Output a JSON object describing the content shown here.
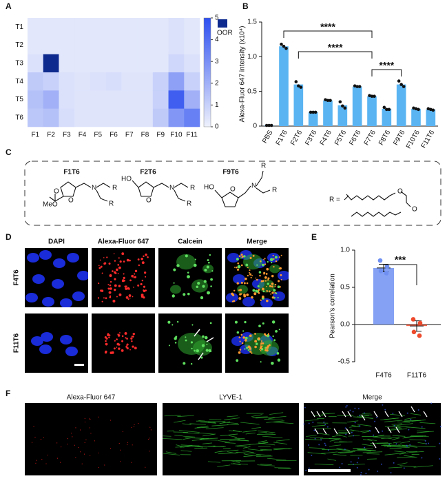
{
  "panel_labels": [
    "A",
    "B",
    "C",
    "D",
    "E",
    "F"
  ],
  "chart_data": [
    {
      "type": "heatmap",
      "rows": [
        "T1",
        "T2",
        "T3",
        "T4",
        "T5",
        "T6"
      ],
      "columns": [
        "F1",
        "F2",
        "F3",
        "F4",
        "F5",
        "F6",
        "F7",
        "F8",
        "F9",
        "F10",
        "F11"
      ],
      "values": [
        [
          0.3,
          0.3,
          0.3,
          0.3,
          0.3,
          0.3,
          0.3,
          0.3,
          0.3,
          0.5,
          0.3
        ],
        [
          0.3,
          0.3,
          0.3,
          0.3,
          0.3,
          0.3,
          0.3,
          0.3,
          0.3,
          0.5,
          0.3
        ],
        [
          0.5,
          null,
          0.3,
          0.3,
          0.3,
          0.3,
          0.3,
          0.3,
          0.3,
          0.8,
          0.5
        ],
        [
          1.2,
          1.0,
          0.5,
          0.4,
          0.5,
          0.6,
          0.4,
          0.4,
          1.0,
          2.5,
          1.0
        ],
        [
          1.5,
          2.0,
          0.5,
          0.4,
          0.4,
          0.4,
          0.4,
          0.4,
          1.0,
          4.5,
          2.0
        ],
        [
          1.3,
          1.5,
          0.6,
          0.4,
          0.4,
          0.4,
          0.4,
          0.4,
          1.2,
          2.8,
          3.5
        ]
      ],
      "zlim": [
        0,
        5
      ],
      "zticks": [
        0,
        1,
        2,
        3,
        4,
        5
      ],
      "colors": [
        "#eef1fc",
        "#2d4ff0"
      ],
      "oor_color": "#0e2a8e",
      "oor_label": "OOR"
    },
    {
      "type": "bar",
      "categories": [
        "PBS",
        "F1T6",
        "F2T6",
        "F3T6",
        "F4T6",
        "F5T6",
        "F6T6",
        "F7T6",
        "F8T6",
        "F9T6",
        "F10T6",
        "F11T6"
      ],
      "values": [
        0.01,
        1.15,
        0.6,
        0.2,
        0.37,
        0.3,
        0.57,
        0.43,
        0.25,
        0.6,
        0.25,
        0.24
      ],
      "points": [
        [
          0.01,
          0.01,
          0.01
        ],
        [
          1.18,
          1.15,
          1.12
        ],
        [
          0.64,
          0.58,
          0.56
        ],
        [
          0.2,
          0.2,
          0.2
        ],
        [
          0.38,
          0.37,
          0.37
        ],
        [
          0.35,
          0.29,
          0.26
        ],
        [
          0.58,
          0.57,
          0.57
        ],
        [
          0.44,
          0.43,
          0.43
        ],
        [
          0.27,
          0.24,
          0.24
        ],
        [
          0.65,
          0.6,
          0.57
        ],
        [
          0.26,
          0.25,
          0.24
        ],
        [
          0.25,
          0.24,
          0.23
        ]
      ],
      "color": "#5ab4f2",
      "ylim": [
        0,
        1.5
      ],
      "yticks": [
        0,
        0.5,
        {
          "value": 1,
          "label": "1.0"
        },
        1.5
      ],
      "ylabel": "Alexa-Fluor 647 intensity (x10⁴)",
      "significance": [
        {
          "from": "F1T6",
          "to": "F7T6",
          "label": "****"
        },
        {
          "from": "F2T6",
          "to": "F7T6",
          "label": "****"
        },
        {
          "from": "F7T6",
          "to": "F9T6",
          "label": "****"
        }
      ]
    },
    {
      "type": "dot_bar",
      "categories": [
        "F4T6",
        "F11T6"
      ],
      "values": [
        0.76,
        -0.02
      ],
      "errors": [
        0.05,
        0.07
      ],
      "points": [
        [
          0.86,
          0.78,
          0.72,
          0.69
        ],
        [
          0.07,
          0.02,
          -0.1,
          -0.15
        ]
      ],
      "colors": [
        "#6f90f2",
        "#ee4a2c"
      ],
      "ylim": [
        -0.5,
        1
      ],
      "yticks": [
        -0.5,
        {
          "value": 0,
          "label": "0.0"
        },
        0.5,
        {
          "value": 1,
          "label": "1.0"
        }
      ],
      "ylabel": "Pearson's correlation",
      "significance": [
        {
          "from": "F4T6",
          "to": "F11T6",
          "label": "***"
        }
      ]
    }
  ],
  "structures": {
    "names": [
      "F1T6",
      "F2T6",
      "F9T6"
    ],
    "atoms": [
      [
        "MeO",
        "O",
        "O",
        "N",
        "R",
        "R"
      ],
      [
        "HO",
        "O",
        "N",
        "R",
        "R"
      ],
      [
        "HO",
        "O",
        "N",
        "R",
        "R"
      ]
    ],
    "r_def": [
      "R =",
      "O",
      "O"
    ]
  },
  "microscopy": {
    "columns": [
      "DAPI",
      "Alexa-Fluor 647",
      "Calcein",
      "Merge"
    ],
    "rows": [
      "F4T6",
      "F11T6"
    ]
  },
  "tissue": {
    "columns": [
      "Alexa-Fluor 647",
      "LYVE-1",
      "Merge"
    ]
  }
}
